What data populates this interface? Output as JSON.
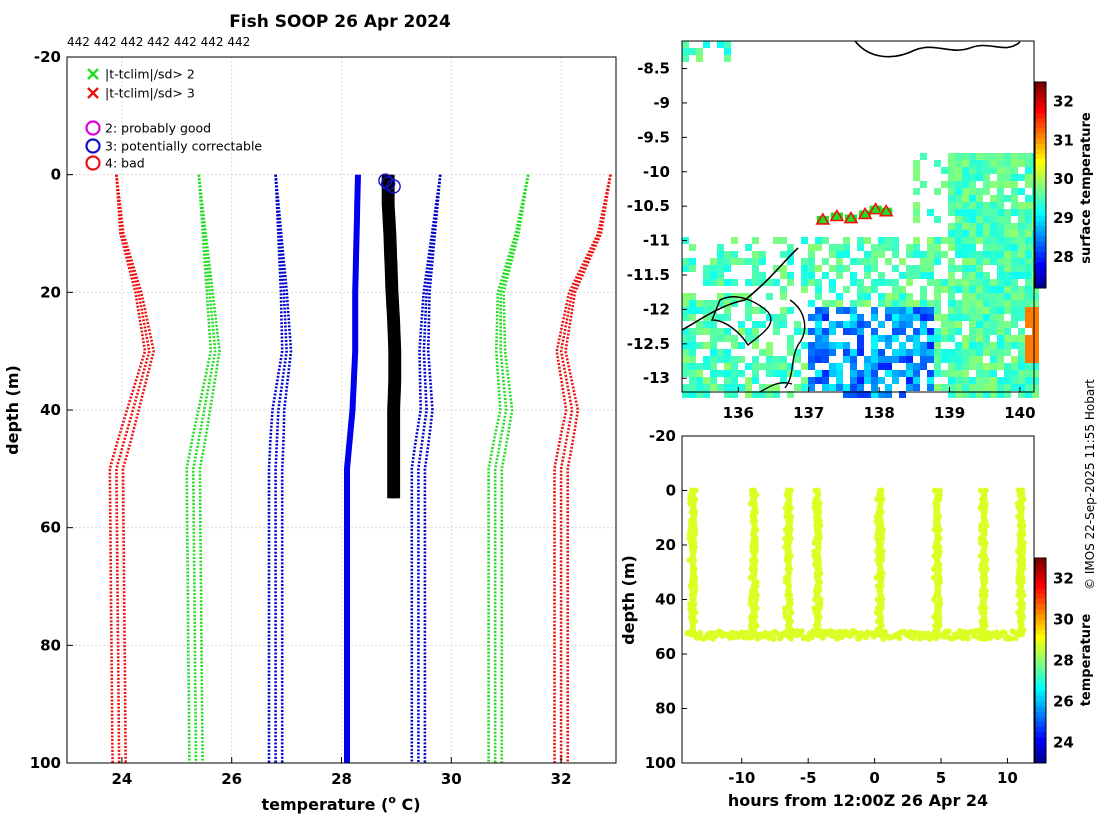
{
  "title": "Fish SOOP 26 Apr 2024",
  "drop_label": "442 442 442 442 442 442 442",
  "copyright": "© IMOS 22-Sep-2025 11:55 Hobart",
  "colors": {
    "sd2": "#22dd22",
    "sd3": "#ee1111",
    "flag2": "#dd00dd",
    "flag3": "#1111cc",
    "flag4": "#ee1111",
    "mean": "#0000ee",
    "profile": "#000000",
    "sd1": "#0000cc",
    "land": "#000000",
    "track": "#c0f020"
  },
  "legend": {
    "items": [
      {
        "marker": "x",
        "color": "#22dd22",
        "label": "|t-tclim|/sd> 2"
      },
      {
        "marker": "x",
        "color": "#ee1111",
        "label": "|t-tclim|/sd> 3"
      },
      {
        "marker": "o",
        "color": "#dd00dd",
        "label": "2: probably good"
      },
      {
        "marker": "o",
        "color": "#1111cc",
        "label": "3: potentially correctable"
      },
      {
        "marker": "o",
        "color": "#ee1111",
        "label": "4: bad"
      }
    ]
  },
  "chart_data": [
    {
      "type": "line",
      "name": "temperature-profile",
      "xlabel": "temperature (o C)",
      "xlabel_prefix": "temperature (",
      "xlabel_sup": "o",
      "xlabel_suffix": " C)",
      "ylabel": "depth (m)",
      "xlim": [
        23,
        33
      ],
      "ylim": [
        -20,
        100
      ],
      "xticks": [
        24,
        26,
        28,
        30,
        32
      ],
      "yticks": [
        -20,
        0,
        20,
        40,
        60,
        80,
        100
      ],
      "grid": true,
      "clim_mean": {
        "depth": [
          0,
          20,
          30,
          40,
          50,
          100
        ],
        "temp": [
          28.3,
          28.25,
          28.25,
          28.2,
          28.1,
          28.1
        ]
      },
      "bounds": [
        {
          "name": "mean-1sd",
          "color": "#0000cc",
          "depth": [
            0,
            20,
            30,
            40,
            50,
            100
          ],
          "temp": [
            26.8,
            26.95,
            27.0,
            26.85,
            26.8,
            26.8
          ]
        },
        {
          "name": "mean+1sd",
          "color": "#0000cc",
          "depth": [
            0,
            20,
            30,
            40,
            50,
            100
          ],
          "temp": [
            29.8,
            29.55,
            29.5,
            29.55,
            29.4,
            29.4
          ]
        },
        {
          "name": "mean-2sd",
          "color": "#22dd22",
          "depth": [
            0,
            20,
            30,
            40,
            50,
            100
          ],
          "temp": [
            25.4,
            25.6,
            25.7,
            25.5,
            25.3,
            25.35
          ]
        },
        {
          "name": "mean+2sd",
          "color": "#22dd22",
          "depth": [
            0,
            10,
            20,
            30,
            40,
            50,
            100
          ],
          "temp": [
            31.4,
            31.2,
            30.9,
            30.9,
            31.0,
            30.8,
            30.8
          ]
        },
        {
          "name": "mean-3sd",
          "color": "#ee1111",
          "depth": [
            0,
            10,
            20,
            30,
            40,
            50,
            100
          ],
          "temp": [
            23.9,
            24.0,
            24.3,
            24.5,
            24.2,
            23.9,
            23.95
          ]
        },
        {
          "name": "mean+3sd",
          "color": "#ee1111",
          "depth": [
            0,
            10,
            20,
            30,
            40,
            50,
            100
          ],
          "temp": [
            32.9,
            32.7,
            32.2,
            32.0,
            32.2,
            32.0,
            32.0
          ]
        }
      ],
      "profile": {
        "depth": [
          0,
          5,
          10,
          15,
          20,
          25,
          30,
          35,
          40,
          45,
          50,
          55
        ],
        "temp": [
          28.85,
          28.85,
          28.88,
          28.9,
          28.92,
          28.95,
          28.97,
          28.97,
          28.95,
          28.95,
          28.95,
          28.95
        ]
      },
      "flag_points": {
        "depth": [
          1,
          1.5,
          2
        ],
        "temp": [
          28.8,
          28.85,
          28.95
        ]
      }
    },
    {
      "type": "heatmap",
      "name": "surface-temperature-map",
      "xticks": [
        136,
        137,
        138,
        139,
        140
      ],
      "yticks": [
        -8.5,
        -9,
        -9.5,
        -10,
        -10.5,
        -11,
        -11.5,
        -12,
        -12.5,
        -13
      ],
      "xlim": [
        135.2,
        140.2
      ],
      "ylim": [
        -13.2,
        -8.1
      ],
      "colorbar": {
        "label": "surface temperature",
        "ticks": [
          28,
          29,
          30,
          31,
          32
        ],
        "range": [
          27.2,
          32.5
        ]
      },
      "track": {
        "lon": [
          137.2,
          137.4,
          137.6,
          137.8,
          137.95,
          138.1
        ],
        "lat": [
          -10.7,
          -10.65,
          -10.68,
          -10.62,
          -10.55,
          -10.58
        ]
      }
    },
    {
      "type": "scatter",
      "name": "depth-time-section",
      "xlabel": "hours from 12:00Z 26 Apr 24",
      "ylabel": "depth (m)",
      "xlim": [
        -14.5,
        12
      ],
      "ylim": [
        -20,
        100
      ],
      "xticks": [
        -10,
        -5,
        0,
        5,
        10
      ],
      "yticks": [
        -20,
        0,
        20,
        40,
        60,
        80,
        100
      ],
      "colorbar": {
        "label": "temperature",
        "ticks": [
          24,
          26,
          28,
          30,
          32
        ],
        "range": [
          23,
          33
        ]
      },
      "casts_hours": [
        -13.8,
        -9.2,
        -6.6,
        -4.4,
        0.3,
        4.6,
        8.1,
        10.9
      ],
      "bottom_depth_m": 53,
      "temperature_c": 28.9
    }
  ]
}
